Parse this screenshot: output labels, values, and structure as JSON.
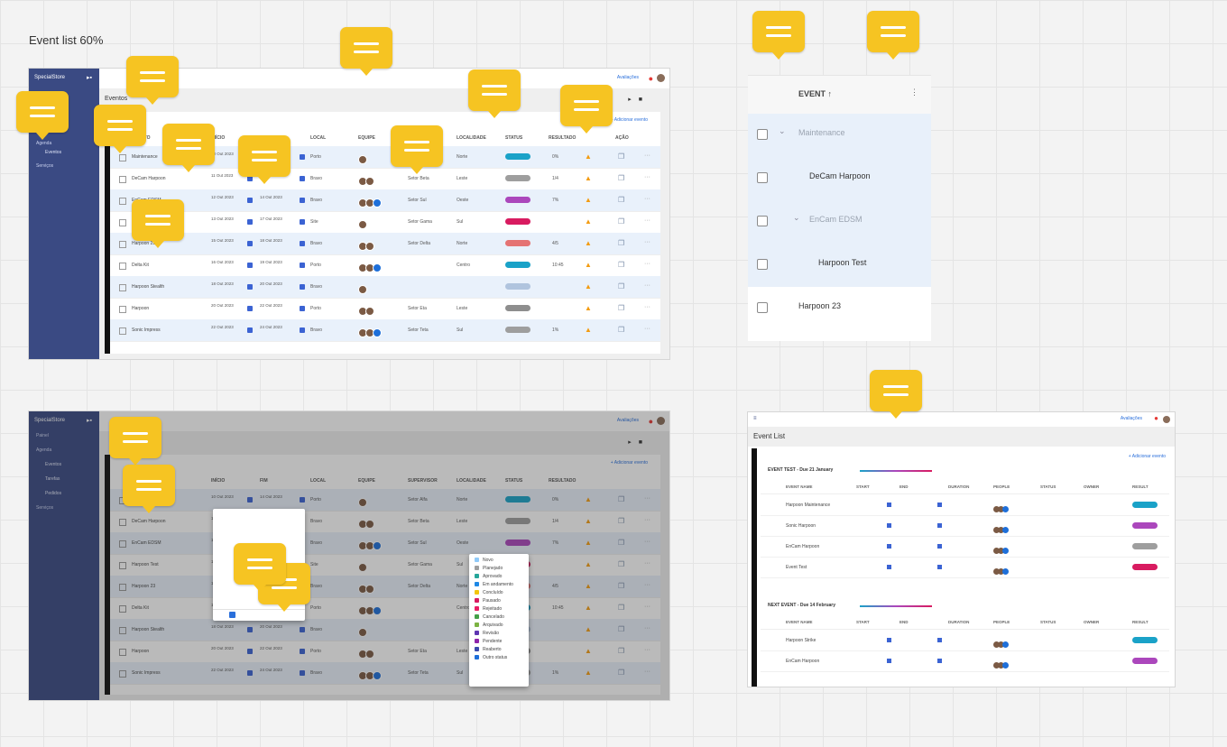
{
  "canvas_label": "Event list 60%",
  "app": {
    "logo_text": "SpecialStore",
    "manage_label": "Avaliações",
    "side_items": [
      "Painel",
      "Agenda",
      "Eventos",
      "Tarefas",
      "Pedidos",
      "Serviços"
    ],
    "page_title": "Eventos",
    "add_label": "+ Adicionar evento"
  },
  "table": {
    "headers": [
      "EVENTO",
      "INÍCIO",
      "FIM",
      "LOCAL",
      "EQUIPE",
      "SUPERVISOR",
      "LOCALIDADE",
      "STATUS",
      "RESULTADO",
      "AÇÃO"
    ],
    "rows": [
      {
        "name": "Maintenance",
        "d1": "10 Out 2023",
        "d2": "14 Out 2023",
        "loc": "Porto",
        "t1": "Setor Alfa",
        "t2": "Norte",
        "num": "0%",
        "pill": "#1aa2c8"
      },
      {
        "name": "DeCam Harpoon",
        "d1": "11 Out 2023",
        "d2": "12 Out 2023",
        "loc": "Bravo",
        "t1": "Setor Beta",
        "t2": "Leste",
        "num": "1/4",
        "pill": "#9e9e9e"
      },
      {
        "name": "EnCam EDSM",
        "d1": "12 Out 2023",
        "d2": "14 Out 2023",
        "loc": "Bravo",
        "t1": "Setor Sul",
        "t2": "Oeste",
        "num": "7%",
        "pill": "#ab47bc"
      },
      {
        "name": "Harpoon Test",
        "d1": "13 Out 2023",
        "d2": "17 Out 2023",
        "loc": "Site",
        "t1": "Setor Gama",
        "t2": "Sul",
        "num": "",
        "pill": "#d81b60"
      },
      {
        "name": "Harpoon 23",
        "d1": "15 Out 2023",
        "d2": "18 Out 2023",
        "loc": "Bravo",
        "t1": "Setor Delta",
        "t2": "Norte",
        "num": "4/5",
        "pill": "#e57373"
      },
      {
        "name": "Delta Kit",
        "d1": "16 Out 2023",
        "d2": "19 Out 2023",
        "loc": "Porto",
        "t1": "",
        "t2": "Centro",
        "num": "10:45",
        "pill": "#1aa2c8"
      },
      {
        "name": "Harpoon Stealth",
        "d1": "18 Out 2023",
        "d2": "20 Out 2023",
        "loc": "Bravo",
        "t1": "",
        "t2": "",
        "num": "",
        "pill": "#b0c4de"
      },
      {
        "name": "Harpoon",
        "d1": "20 Out 2023",
        "d2": "22 Out 2023",
        "loc": "Porto",
        "t1": "Setor Eta",
        "t2": "Leste",
        "num": "",
        "pill": "#8e8e8e"
      },
      {
        "name": "Sonic Impress",
        "d1": "22 Out 2023",
        "d2": "24 Out 2023",
        "loc": "Bravo",
        "t1": "Setor Teta",
        "t2": "Sul",
        "num": "1%",
        "pill": "#9e9e9e"
      }
    ]
  },
  "status_menu": [
    "Novo",
    "Planejado",
    "Aprovado",
    "Em andamento",
    "Concluído",
    "Pausado",
    "Rejeitado",
    "Cancelado",
    "Arquivado",
    "Revisão",
    "Pendente",
    "Reaberto",
    "Outro status"
  ],
  "zoom": {
    "header": "EVENT ↑",
    "rows": [
      "Maintenance",
      "DeCam Harpoon",
      "EnCam EDSM",
      "Harpoon Test",
      "Harpoon 23"
    ]
  },
  "grouped": {
    "title": "Event List",
    "group1": "EVENT TEST - Due 21 January",
    "group2": "NEXT EVENT - Due 14 February",
    "headers": [
      "EVENT NAME",
      "START",
      "END",
      "DURATION",
      "PEOPLE",
      "STATUS",
      "OWNER",
      "RESULT"
    ],
    "rows1": [
      "Harpoon Maintenance",
      "Sonic Harpoon",
      "EnCam Harpoon",
      "Event Test"
    ],
    "rows2": [
      "Harpoon Strike",
      "EnCam Harpoon"
    ]
  }
}
